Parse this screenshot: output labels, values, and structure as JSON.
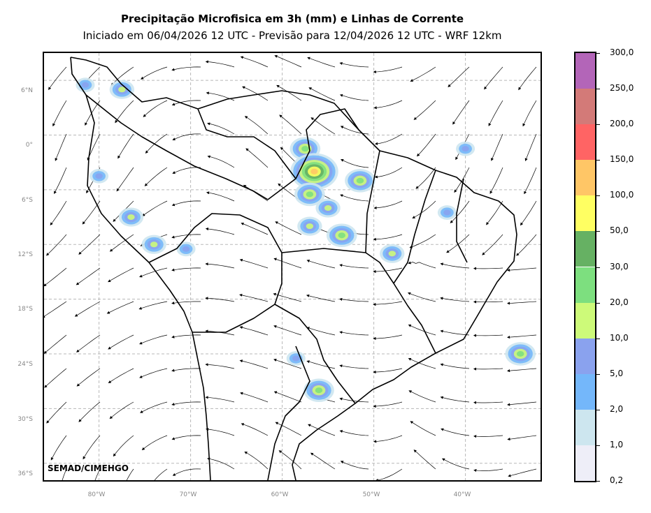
{
  "header": {
    "title": "Precipitação Microfisica em 3h (mm) e Linhas de Corrente",
    "subtitle": "Iniciado em 06/04/2026 12 UTC - Previsão para 12/04/2026 12 UTC - WRF 12km"
  },
  "axes": {
    "lat_labels": [
      "6°N",
      "0°",
      "6°S",
      "12°S",
      "18°S",
      "24°S",
      "30°S",
      "36°S"
    ],
    "lon_labels": [
      "80°W",
      "70°W",
      "60°W",
      "50°W",
      "40°W"
    ]
  },
  "credit": "SEMAD/CIMEHGO",
  "colorbar": {
    "labels": [
      "0,2",
      "1,0",
      "2,0",
      "5,0",
      "10,0",
      "20,0",
      "30,0",
      "50,0",
      "100,0",
      "150,0",
      "200,0",
      "250,0",
      "300,0"
    ],
    "colors": [
      "#eeeef8",
      "#cde6ef",
      "#74b7fa",
      "#8aa2ee",
      "#cdfa79",
      "#7ddf7f",
      "#66b163",
      "#ffff62",
      "#ffc666",
      "#ff6464",
      "#d37a78",
      "#b365b8"
    ]
  },
  "precip_cells": [
    {
      "lon": -57.5,
      "lat": -1.5,
      "level": 5
    },
    {
      "lon": -56.5,
      "lat": -4.0,
      "level": 8
    },
    {
      "lon": -57.0,
      "lat": -6.5,
      "level": 5
    },
    {
      "lon": -51.5,
      "lat": -5.0,
      "level": 5
    },
    {
      "lon": -55.0,
      "lat": -8.0,
      "level": 4
    },
    {
      "lon": -53.5,
      "lat": -11.0,
      "level": 5
    },
    {
      "lon": -57.0,
      "lat": -10.0,
      "level": 4
    },
    {
      "lon": -48.0,
      "lat": -13.0,
      "level": 4
    },
    {
      "lon": -74.0,
      "lat": -12.0,
      "level": 4
    },
    {
      "lon": -70.5,
      "lat": -12.5,
      "level": 3
    },
    {
      "lon": -76.5,
      "lat": -9.0,
      "level": 4
    },
    {
      "lon": -80.0,
      "lat": -4.5,
      "level": 3
    },
    {
      "lon": -77.5,
      "lat": 5.0,
      "level": 4
    },
    {
      "lon": -81.5,
      "lat": 5.5,
      "level": 3
    },
    {
      "lon": -56.0,
      "lat": -28.0,
      "level": 5
    },
    {
      "lon": -58.5,
      "lat": -24.5,
      "level": 3
    },
    {
      "lon": -42.0,
      "lat": -8.5,
      "level": 3
    },
    {
      "lon": -34.0,
      "lat": -24.0,
      "level": 5
    },
    {
      "lon": -40.0,
      "lat": -1.5,
      "level": 3
    }
  ]
}
